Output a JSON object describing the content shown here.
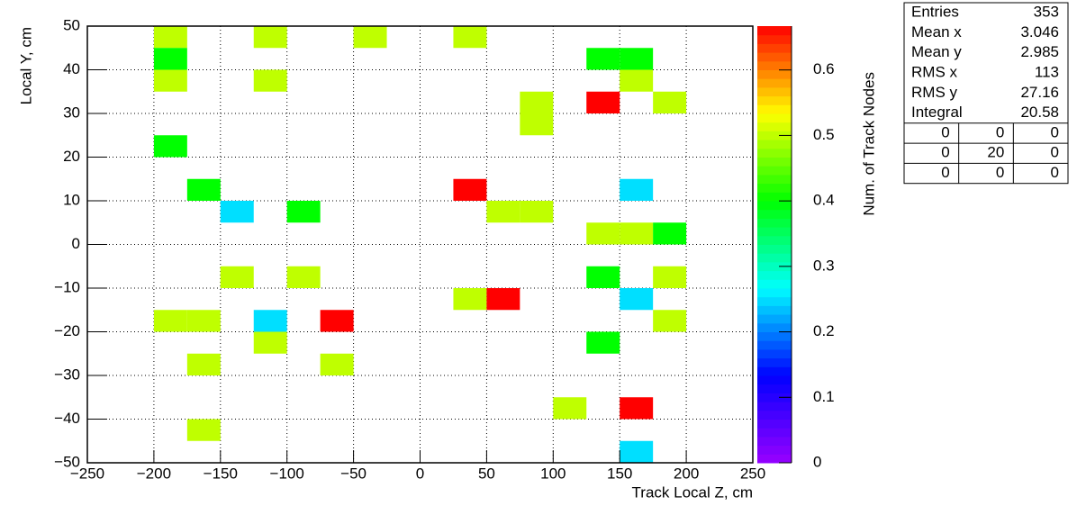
{
  "chart_data": {
    "type": "heatmap",
    "x_label": "Track Local Z, cm",
    "y_label": "Local Y, cm",
    "z_label": "Num. of Track Nodes",
    "xlim": [
      -250,
      250
    ],
    "ylim": [
      -50,
      50
    ],
    "zlim": [
      0,
      0.667
    ],
    "xbin_width": 25,
    "ybin_width": 5,
    "grid": true,
    "palette": [
      "#9900ff",
      "#0000ff",
      "#00ffff",
      "#00ff00",
      "#ffff00",
      "#ff0000"
    ],
    "xticks": [
      {
        "value": -250,
        "label": "−250"
      },
      {
        "value": -200,
        "label": "−200"
      },
      {
        "value": -150,
        "label": "−150"
      },
      {
        "value": -100,
        "label": "−100"
      },
      {
        "value": -50,
        "label": "−50"
      },
      0,
      50,
      100,
      150,
      200,
      250
    ],
    "yticks": [
      {
        "value": -50,
        "label": "−50"
      },
      {
        "value": -40,
        "label": "−40"
      },
      {
        "value": -30,
        "label": "−30"
      },
      {
        "value": -20,
        "label": "−20"
      },
      {
        "value": -10,
        "label": "−10"
      },
      0,
      10,
      20,
      30,
      40,
      50
    ],
    "zticks": [
      0,
      0.1,
      0.2,
      0.3,
      0.4,
      0.5,
      0.6
    ],
    "cells": [
      {
        "x": -200,
        "y": 45,
        "value": 0.5
      },
      {
        "x": -125,
        "y": 45,
        "value": 0.5
      },
      {
        "x": -50,
        "y": 45,
        "value": 0.5
      },
      {
        "x": 25,
        "y": 45,
        "value": 0.5
      },
      {
        "x": -200,
        "y": 40,
        "value": 0.4
      },
      {
        "x": 125,
        "y": 40,
        "value": 0.4
      },
      {
        "x": 150,
        "y": 40,
        "value": 0.4
      },
      {
        "x": -200,
        "y": 35,
        "value": 0.5
      },
      {
        "x": -125,
        "y": 35,
        "value": 0.5
      },
      {
        "x": 150,
        "y": 35,
        "value": 0.5
      },
      {
        "x": 75,
        "y": 30,
        "value": 0.5
      },
      {
        "x": 125,
        "y": 30,
        "value": 0.667
      },
      {
        "x": 175,
        "y": 30,
        "value": 0.5
      },
      {
        "x": 75,
        "y": 25,
        "value": 0.5
      },
      {
        "x": -200,
        "y": 20,
        "value": 0.4
      },
      {
        "x": -175,
        "y": 10,
        "value": 0.4
      },
      {
        "x": 25,
        "y": 10,
        "value": 0.667
      },
      {
        "x": 150,
        "y": 10,
        "value": 0.25
      },
      {
        "x": -150,
        "y": 5,
        "value": 0.25
      },
      {
        "x": -100,
        "y": 5,
        "value": 0.4
      },
      {
        "x": 50,
        "y": 5,
        "value": 0.5
      },
      {
        "x": 75,
        "y": 5,
        "value": 0.5
      },
      {
        "x": 125,
        "y": 0,
        "value": 0.5
      },
      {
        "x": 150,
        "y": 0,
        "value": 0.5
      },
      {
        "x": 175,
        "y": 0,
        "value": 0.4
      },
      {
        "x": -150,
        "y": -10,
        "value": 0.5
      },
      {
        "x": -100,
        "y": -10,
        "value": 0.5
      },
      {
        "x": 125,
        "y": -10,
        "value": 0.4
      },
      {
        "x": 175,
        "y": -10,
        "value": 0.5
      },
      {
        "x": 25,
        "y": -15,
        "value": 0.5
      },
      {
        "x": 50,
        "y": -15,
        "value": 0.667
      },
      {
        "x": 150,
        "y": -15,
        "value": 0.25
      },
      {
        "x": -200,
        "y": -20,
        "value": 0.5
      },
      {
        "x": -175,
        "y": -20,
        "value": 0.5
      },
      {
        "x": -125,
        "y": -20,
        "value": 0.25
      },
      {
        "x": -75,
        "y": -20,
        "value": 0.667
      },
      {
        "x": 175,
        "y": -20,
        "value": 0.5
      },
      {
        "x": -125,
        "y": -25,
        "value": 0.5
      },
      {
        "x": 125,
        "y": -25,
        "value": 0.4
      },
      {
        "x": -175,
        "y": -30,
        "value": 0.5
      },
      {
        "x": -75,
        "y": -30,
        "value": 0.5
      },
      {
        "x": 100,
        "y": -40,
        "value": 0.5
      },
      {
        "x": 150,
        "y": -40,
        "value": 0.667
      },
      {
        "x": -175,
        "y": -45,
        "value": 0.5
      },
      {
        "x": 150,
        "y": -50,
        "value": 0.25
      }
    ],
    "stats": {
      "rows": [
        [
          "Entries",
          "353"
        ],
        [
          "Mean x",
          "3.046"
        ],
        [
          "Mean y",
          "2.985"
        ],
        [
          "RMS x",
          "113"
        ],
        [
          "RMS y",
          "27.16"
        ],
        [
          "Integral",
          "20.58"
        ]
      ],
      "overflow": [
        [
          "0",
          "0",
          "0"
        ],
        [
          "0",
          "20",
          "0"
        ],
        [
          "0",
          "0",
          "0"
        ]
      ]
    }
  }
}
